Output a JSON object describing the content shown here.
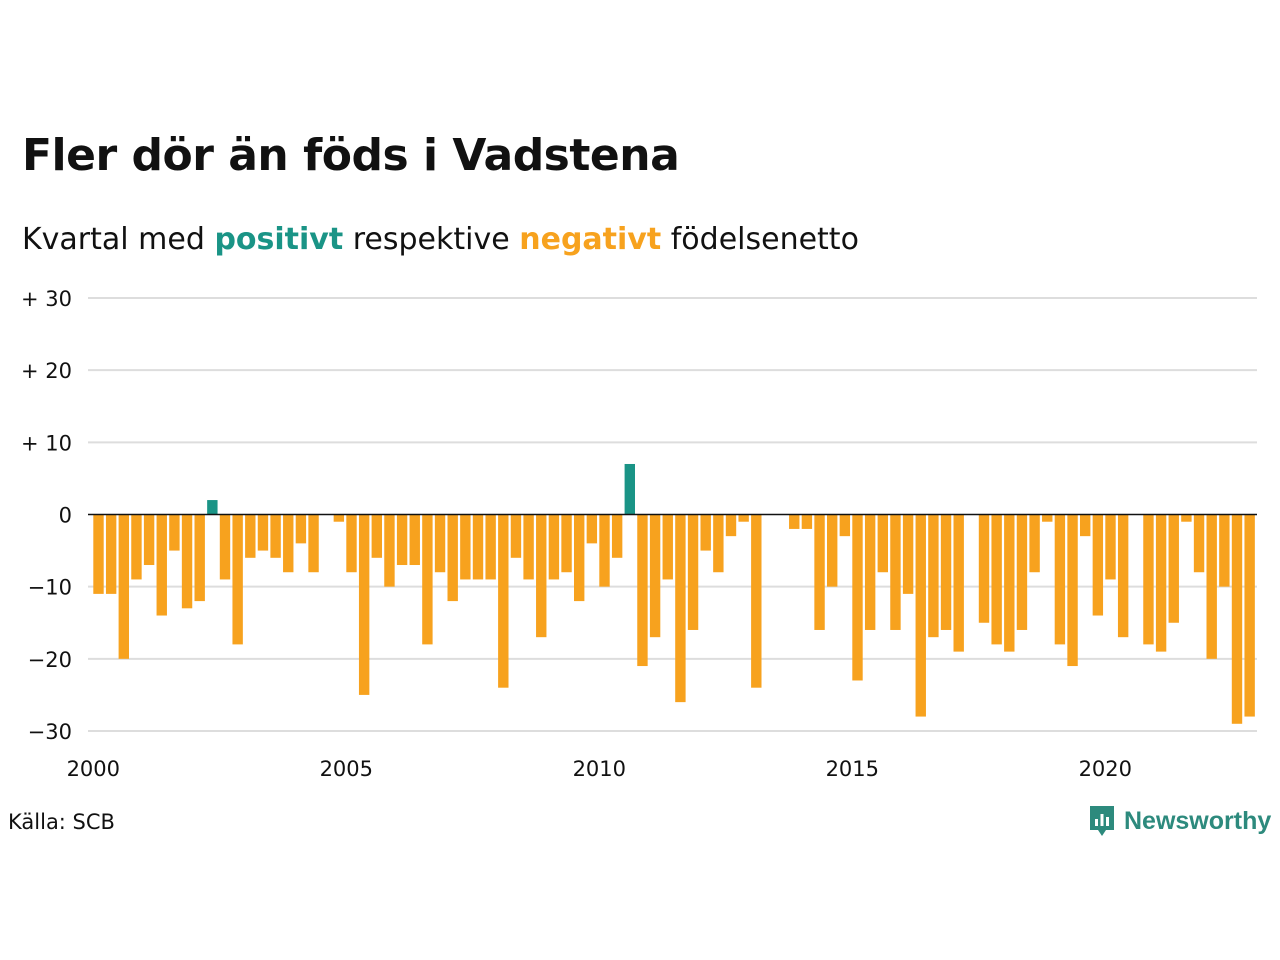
{
  "title": "Fler dör än föds i Vadstena",
  "subtitle": {
    "prefix": "Kvartal med",
    "positive": "positivt",
    "middle": "respektive",
    "negative": "negativt",
    "suffix": "födelsenetto"
  },
  "source": "Källa: SCB",
  "brand": {
    "name": "Newsworthy",
    "icon": "newsworthy-logo-icon"
  },
  "colors": {
    "positive": "#1a9486",
    "negative": "#f7a21e",
    "grid": "#dddddd",
    "zero_line": "#111111"
  },
  "chart_data": {
    "type": "bar",
    "x_start": 2000,
    "period": "quarter",
    "y_ticks": [
      {
        "value": 30,
        "label": "+ 30"
      },
      {
        "value": 20,
        "label": "+ 20"
      },
      {
        "value": 10,
        "label": "+ 10"
      },
      {
        "value": 0,
        "label": "0"
      },
      {
        "value": -10,
        "label": "−10"
      },
      {
        "value": -20,
        "label": "−20"
      },
      {
        "value": -30,
        "label": "−30"
      }
    ],
    "x_ticks": [
      "2000",
      "2005",
      "2010",
      "2015",
      "2020"
    ],
    "ylim": [
      -30,
      30
    ],
    "grid": true,
    "values": [
      -11,
      -11,
      -20,
      -9,
      -7,
      -14,
      -5,
      -13,
      -12,
      2,
      -9,
      -18,
      -6,
      -5,
      -6,
      -8,
      -4,
      -8,
      0,
      -1,
      -8,
      -25,
      -6,
      -10,
      -7,
      -7,
      -18,
      -8,
      -12,
      -9,
      -9,
      -9,
      -24,
      -6,
      -9,
      -17,
      -9,
      -8,
      -12,
      -4,
      -10,
      -6,
      7,
      -21,
      -17,
      -9,
      -26,
      -16,
      -5,
      -8,
      -3,
      -1,
      -24,
      0,
      0,
      -2,
      -2,
      -16,
      -10,
      -3,
      -23,
      -16,
      -8,
      -16,
      -11,
      -28,
      -17,
      -16,
      -19,
      0,
      -15,
      -18,
      -19,
      -16,
      -8,
      -1,
      -18,
      -21,
      -3,
      -14,
      -9,
      -17,
      0,
      -18,
      -19,
      -15,
      -1,
      -8,
      -20,
      -10,
      -29,
      -28
    ]
  }
}
